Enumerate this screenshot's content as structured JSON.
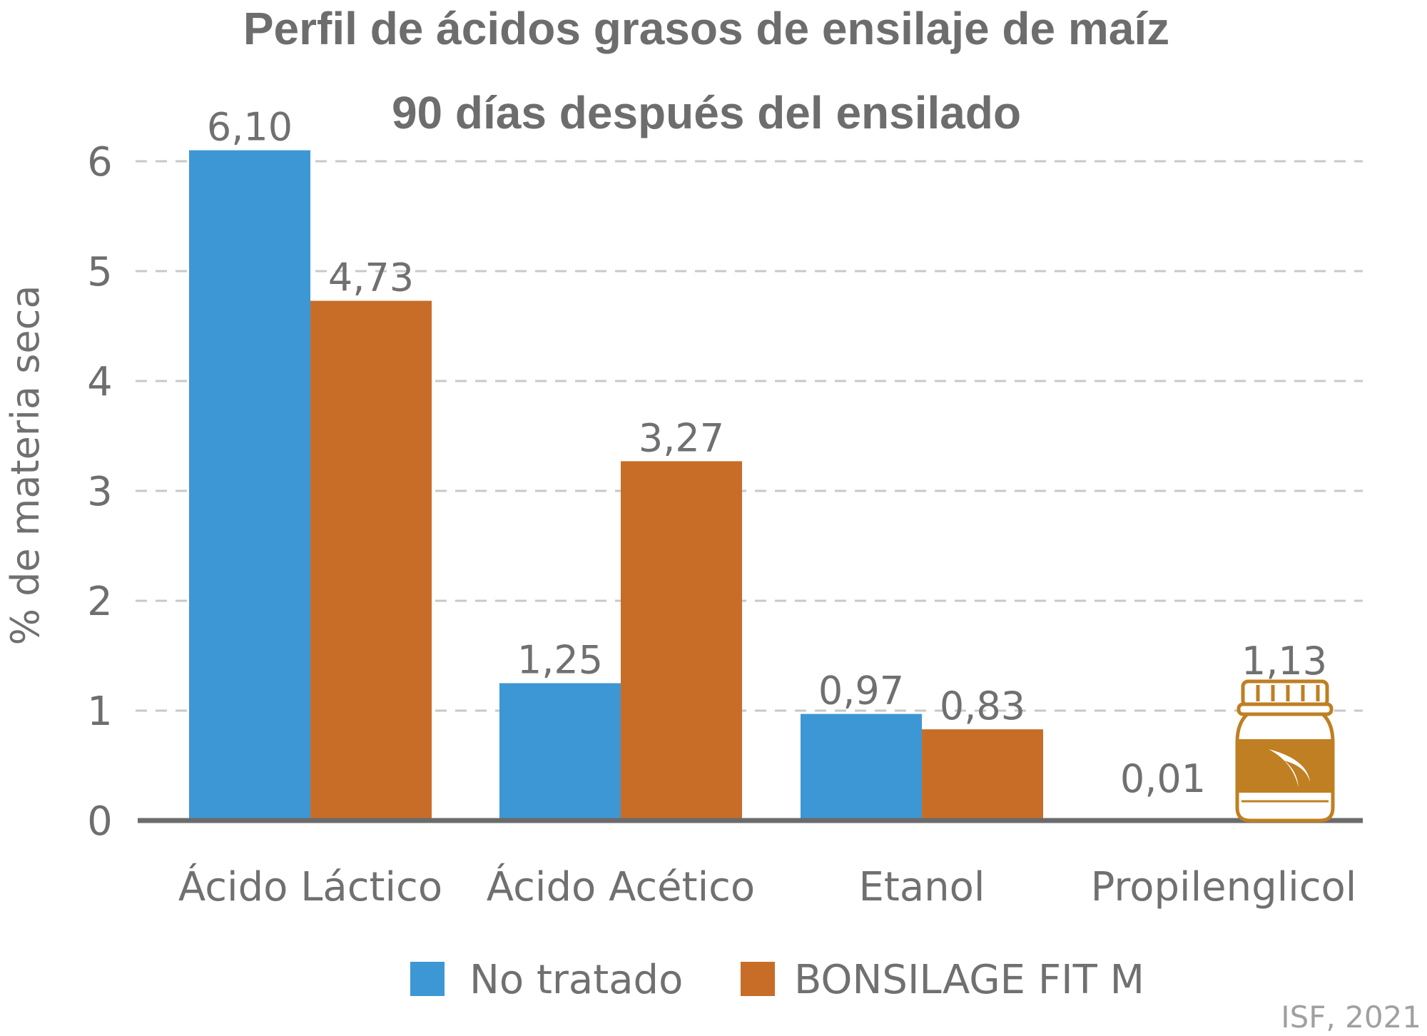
{
  "chart_data": {
    "type": "bar",
    "title": "Perfil de ácidos grasos de ensilaje de maíz",
    "subtitle": "90 días después del ensilado",
    "ylabel": "% de materia seca",
    "xlabel": "",
    "ylim": [
      0,
      6
    ],
    "yticks": [
      0,
      1,
      2,
      3,
      4,
      5,
      6
    ],
    "grid": true,
    "legend_position": "bottom",
    "categories": [
      "Ácido Láctico",
      "Ácido Acético",
      "Etanol",
      "Propilenglicol"
    ],
    "series": [
      {
        "name": "No tratado",
        "color": "#3d97d5",
        "values": [
          6.1,
          1.25,
          0.97,
          0.01
        ],
        "labels": [
          "6,10",
          "1,25",
          "0,97",
          "0,01"
        ]
      },
      {
        "name": "BONSILAGE FIT M",
        "color": "#c76d28",
        "values": [
          4.73,
          3.27,
          0.83,
          1.13
        ],
        "labels": [
          "4,73",
          "3,27",
          "0,83",
          "1,13"
        ]
      }
    ],
    "source": "ISF, 2021"
  },
  "colors": {
    "text": "#6d6d6d",
    "grid": "#c8c8c8",
    "axis": "#6b6b6b",
    "jar": "#bf7f22"
  },
  "icons": [
    "product-jar-icon"
  ]
}
